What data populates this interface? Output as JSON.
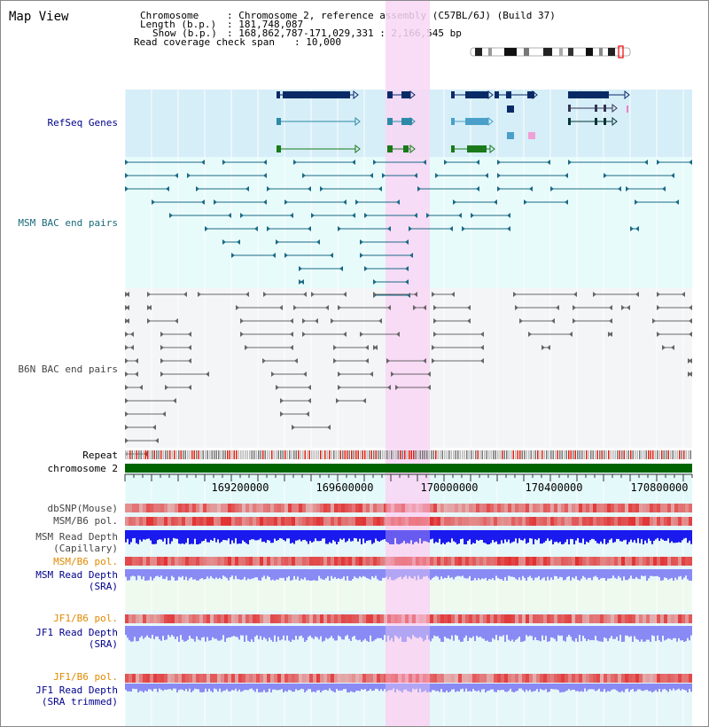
{
  "view_title": "Map View",
  "header": {
    "chromosome_key": "Chromosome",
    "chromosome_val": "Chromosome 2, reference assembly (C57BL/6J) (Build 37)",
    "length_key": "Length (b.p.)",
    "length_val": "181,748,087",
    "show_key": "Show (b.p.)",
    "show_val": "168,862,787-171,029,331 : 2,166,545 bp",
    "coverage_key": "Read coverage check span",
    "coverage_val": "10,000"
  },
  "tracks": {
    "refseq": "RefSeq Genes",
    "msm_bac": "MSM BAC end pairs",
    "b6n_bac": "B6N BAC end pairs",
    "repeat": "Repeat",
    "chromosome": "chromosome 2",
    "dbsnp": "dbSNP(Mouse)",
    "msm_pol_1": "MSM/B6 pol.",
    "msm_depth_cap_1": "MSM Read Depth",
    "msm_depth_cap_2": "(Capillary)",
    "msm_pol_2": "MSM/B6 pol.",
    "msm_depth_sra_1": "MSM Read Depth",
    "msm_depth_sra_2": "(SRA)",
    "jf1_pol_1": "JF1/B6 pol.",
    "jf1_depth_1": "JF1 Read Depth",
    "jf1_depth_2": "(SRA)",
    "jf1_pol_2": "JF1/B6 pol.",
    "jf1_trim_1": "JF1 Read Depth",
    "jf1_trim_2": "(SRA trimmed)"
  },
  "axis_ticks": [
    "169200000",
    "169600000",
    "170000000",
    "170400000",
    "170800000"
  ],
  "colors": {
    "refseq_bg": "#d6eef8",
    "bac_bg": "#e8fbfb",
    "b6n_bg": "#f4f5f7",
    "highlight": "#f8d6f4",
    "navy_gene": "#0a2a66",
    "chromosome": "#006400",
    "depth_blue": "#1a1aee",
    "depth_light": "#8a8af5",
    "snp_red": "#e03030"
  }
}
